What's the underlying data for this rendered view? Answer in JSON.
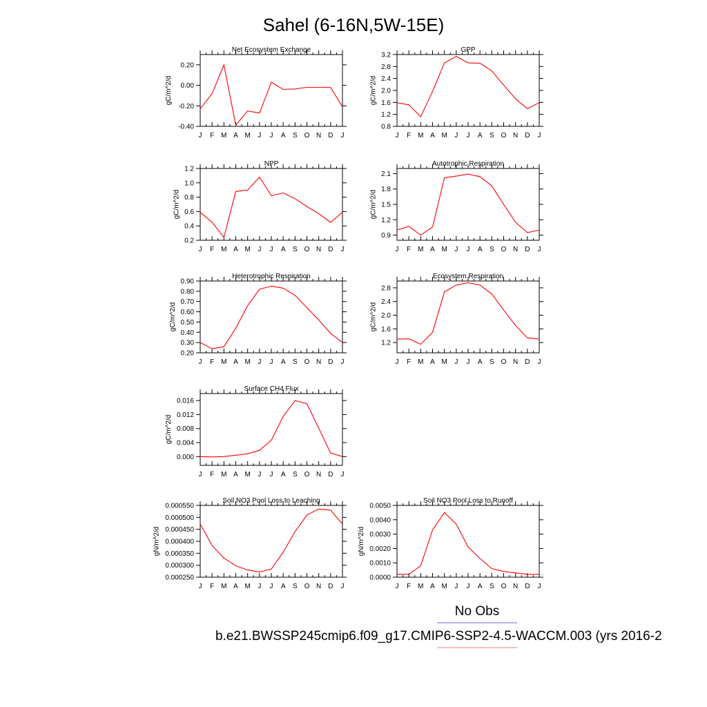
{
  "page_title": "Sahel (6-16N,5W-15E)",
  "legend": {
    "obs_label": "No Obs",
    "obs_color": "#6a6ae0",
    "model_label": "b.e21.BWSSP245cmip6.f09_g17.CMIP6-SSP2-4.5-WACCM.003 (yrs 2016-2",
    "model_color": "#f08080"
  },
  "chart_data": [
    {
      "type": "line",
      "title": "Net Ecosystem Exchange",
      "ylabel": "gC/m^2/d",
      "x": [
        "J",
        "F",
        "M",
        "A",
        "M",
        "J",
        "J",
        "A",
        "S",
        "O",
        "N",
        "D",
        "J"
      ],
      "series": [
        {
          "color": "#ff0000",
          "values": [
            -0.23,
            -0.08,
            0.2,
            -0.39,
            -0.25,
            -0.27,
            0.03,
            -0.04,
            -0.035,
            -0.02,
            -0.02,
            -0.02,
            -0.21
          ]
        }
      ],
      "ylim": [
        -0.4,
        0.3
      ],
      "yticks": [
        -0.4,
        -0.2,
        0.0,
        0.2
      ],
      "ytick_labels": [
        "-0.40",
        "-0.20",
        "0.00",
        "0.20"
      ]
    },
    {
      "type": "line",
      "title": "GPP",
      "ylabel": "gC/m^2/d",
      "x": [
        "J",
        "F",
        "M",
        "A",
        "M",
        "J",
        "J",
        "A",
        "S",
        "O",
        "N",
        "D",
        "J"
      ],
      "series": [
        {
          "color": "#ff0000",
          "values": [
            1.59,
            1.52,
            1.12,
            1.97,
            2.92,
            3.14,
            2.92,
            2.91,
            2.65,
            2.18,
            1.72,
            1.39,
            1.59
          ]
        }
      ],
      "ylim": [
        0.8,
        3.2
      ],
      "yticks": [
        0.8,
        1.2,
        1.6,
        2.0,
        2.4,
        2.8,
        3.2
      ],
      "ytick_labels": [
        "0.8",
        "1.2",
        "1.6",
        "2.0",
        "2.4",
        "2.8",
        "3.2"
      ]
    },
    {
      "type": "line",
      "title": "NPP",
      "ylabel": "gC/m^2/d",
      "x": [
        "J",
        "F",
        "M",
        "A",
        "M",
        "J",
        "J",
        "A",
        "S",
        "O",
        "N",
        "D",
        "J"
      ],
      "series": [
        {
          "color": "#ff0000",
          "values": [
            0.59,
            0.45,
            0.24,
            0.88,
            0.9,
            1.08,
            0.82,
            0.86,
            0.78,
            0.67,
            0.57,
            0.45,
            0.59
          ]
        }
      ],
      "ylim": [
        0.2,
        1.2
      ],
      "yticks": [
        0.2,
        0.4,
        0.6,
        0.8,
        1.0,
        1.2
      ],
      "ytick_labels": [
        "0.2",
        "0.4",
        "0.6",
        "0.8",
        "1.0",
        "1.2"
      ]
    },
    {
      "type": "line",
      "title": "Autotrophic Respiration",
      "ylabel": "gC/m^2/d",
      "x": [
        "J",
        "F",
        "M",
        "A",
        "M",
        "J",
        "J",
        "A",
        "S",
        "O",
        "N",
        "D",
        "J"
      ],
      "series": [
        {
          "color": "#ff0000",
          "values": [
            1.0,
            1.07,
            0.9,
            1.06,
            2.02,
            2.05,
            2.09,
            2.04,
            1.86,
            1.5,
            1.15,
            0.95,
            1.0
          ]
        }
      ],
      "ylim": [
        0.8,
        2.2
      ],
      "yticks": [
        0.9,
        1.2,
        1.5,
        1.8,
        2.1
      ],
      "ytick_labels": [
        "0.9",
        "1.2",
        "1.5",
        "1.8",
        "2.1"
      ]
    },
    {
      "type": "line",
      "title": "Heterotrophic Respiration",
      "ylabel": "gC/m^2/d",
      "x": [
        "J",
        "F",
        "M",
        "A",
        "M",
        "J",
        "J",
        "A",
        "S",
        "O",
        "N",
        "D",
        "J"
      ],
      "series": [
        {
          "color": "#ff0000",
          "values": [
            0.3,
            0.24,
            0.26,
            0.44,
            0.66,
            0.82,
            0.85,
            0.83,
            0.76,
            0.64,
            0.52,
            0.39,
            0.3
          ]
        }
      ],
      "ylim": [
        0.2,
        0.9
      ],
      "yticks": [
        0.2,
        0.3,
        0.4,
        0.5,
        0.6,
        0.7,
        0.8,
        0.9
      ],
      "ytick_labels": [
        "0.20",
        "0.30",
        "0.40",
        "0.50",
        "0.60",
        "0.70",
        "0.80",
        "0.90"
      ]
    },
    {
      "type": "line",
      "title": "Ecosystem Respiration",
      "ylabel": "gC/m^2/d",
      "x": [
        "J",
        "F",
        "M",
        "A",
        "M",
        "J",
        "J",
        "A",
        "S",
        "O",
        "N",
        "D",
        "J"
      ],
      "series": [
        {
          "color": "#ff0000",
          "values": [
            1.3,
            1.31,
            1.15,
            1.5,
            2.68,
            2.88,
            2.95,
            2.88,
            2.62,
            2.15,
            1.7,
            1.34,
            1.3
          ]
        }
      ],
      "ylim": [
        0.9,
        3.0
      ],
      "yticks": [
        1.2,
        1.6,
        2.0,
        2.4,
        2.8
      ],
      "ytick_labels": [
        "1.2",
        "1.6",
        "2.0",
        "2.4",
        "2.8"
      ]
    },
    {
      "type": "line",
      "title": "Surface CH4 Flux",
      "ylabel": "gC/m^2/d",
      "x": [
        "J",
        "F",
        "M",
        "A",
        "M",
        "J",
        "J",
        "A",
        "S",
        "O",
        "N",
        "D",
        "J"
      ],
      "series": [
        {
          "color": "#ff0000",
          "values": [
            0.0,
            -0.0001,
            0.0,
            0.0004,
            0.0008,
            0.0018,
            0.0047,
            0.0115,
            0.016,
            0.0151,
            0.0081,
            0.001,
            0.0
          ]
        }
      ],
      "ylim": [
        -0.0025,
        0.018
      ],
      "yticks": [
        0.0,
        0.004,
        0.008,
        0.012,
        0.016
      ],
      "ytick_labels": [
        "0.000",
        "0.004",
        "0.008",
        "0.012",
        "0.016"
      ]
    },
    {
      "type": "line",
      "title": "Soil NO3 Pool Loss to Leaching",
      "ylabel": "gN/m^2/d",
      "x": [
        "J",
        "F",
        "M",
        "A",
        "M",
        "J",
        "J",
        "A",
        "S",
        "O",
        "N",
        "D",
        "J"
      ],
      "series": [
        {
          "color": "#ff0000",
          "values": [
            0.000472,
            0.000382,
            0.00033,
            0.000298,
            0.00028,
            0.000272,
            0.000284,
            0.000355,
            0.00044,
            0.00051,
            0.000535,
            0.00053,
            0.000472
          ]
        }
      ],
      "ylim": [
        0.00025,
        0.00055
      ],
      "yticks": [
        0.00025,
        0.0003,
        0.00035,
        0.0004,
        0.00045,
        0.0005,
        0.00055
      ],
      "ytick_labels": [
        "0.000250",
        "0.000300",
        "0.000350",
        "0.000400",
        "0.000450",
        "0.000500",
        "0.000550"
      ]
    },
    {
      "type": "line",
      "title": "Soil NO3 Pool Loss to Runoff",
      "ylabel": "gN/m^2/d",
      "x": [
        "J",
        "F",
        "M",
        "A",
        "M",
        "J",
        "J",
        "A",
        "S",
        "O",
        "N",
        "D",
        "J"
      ],
      "series": [
        {
          "color": "#ff0000",
          "values": [
            0.0002,
            0.0002,
            0.0008,
            0.0033,
            0.0045,
            0.0037,
            0.0021,
            0.0013,
            0.0006,
            0.0004,
            0.0003,
            0.0002,
            0.0002
          ]
        }
      ],
      "ylim": [
        0.0,
        0.005
      ],
      "yticks": [
        0.0,
        0.001,
        0.002,
        0.003,
        0.004,
        0.005
      ],
      "ytick_labels": [
        "0.0000",
        "0.0010",
        "0.0020",
        "0.0030",
        "0.0040",
        "0.0050"
      ]
    }
  ]
}
